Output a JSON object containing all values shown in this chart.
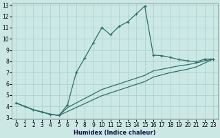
{
  "xlabel": "Humidex (Indice chaleur)",
  "bg_color": "#cce8e5",
  "grid_color": "#aad4cf",
  "line_color": "#2a7068",
  "xlim": [
    0,
    23
  ],
  "ylim": [
    3,
    13
  ],
  "xticks": [
    0,
    1,
    2,
    3,
    4,
    5,
    6,
    7,
    8,
    9,
    10,
    11,
    12,
    13,
    14,
    15,
    16,
    17,
    18,
    19,
    20,
    21,
    22,
    23
  ],
  "yticks": [
    3,
    4,
    5,
    6,
    7,
    8,
    9,
    10,
    11,
    12,
    13
  ],
  "main_x": [
    0,
    1,
    2,
    3,
    4,
    5,
    6,
    7,
    8,
    9,
    10,
    11,
    12,
    13,
    14,
    15,
    16,
    17,
    18,
    19,
    20,
    21,
    22,
    23
  ],
  "main_y": [
    4.3,
    4.0,
    3.7,
    3.5,
    3.3,
    3.2,
    4.15,
    7.0,
    8.3,
    9.65,
    11.0,
    10.35,
    11.1,
    11.5,
    12.2,
    12.9,
    8.55,
    8.5,
    8.35,
    8.15,
    8.05,
    7.95,
    8.2,
    8.2
  ],
  "line2_x": [
    0,
    1,
    2,
    3,
    4,
    5,
    6,
    7,
    8,
    9,
    10,
    11,
    12,
    13,
    14,
    15,
    16,
    17,
    18,
    19,
    20,
    21,
    22,
    23
  ],
  "line2_y": [
    4.3,
    4.0,
    3.7,
    3.5,
    3.3,
    3.2,
    3.55,
    3.9,
    4.25,
    4.6,
    4.95,
    5.2,
    5.45,
    5.7,
    5.95,
    6.2,
    6.6,
    6.8,
    7.0,
    7.15,
    7.3,
    7.5,
    7.85,
    8.2
  ],
  "line3_x": [
    0,
    1,
    2,
    3,
    4,
    5,
    6,
    7,
    8,
    9,
    10,
    11,
    12,
    13,
    14,
    15,
    16,
    17,
    18,
    19,
    20,
    21,
    22,
    23
  ],
  "line3_y": [
    4.3,
    4.0,
    3.7,
    3.5,
    3.3,
    3.2,
    3.9,
    4.3,
    4.7,
    5.1,
    5.5,
    5.75,
    6.0,
    6.25,
    6.5,
    6.75,
    7.15,
    7.3,
    7.45,
    7.6,
    7.7,
    7.85,
    8.05,
    8.2
  ]
}
